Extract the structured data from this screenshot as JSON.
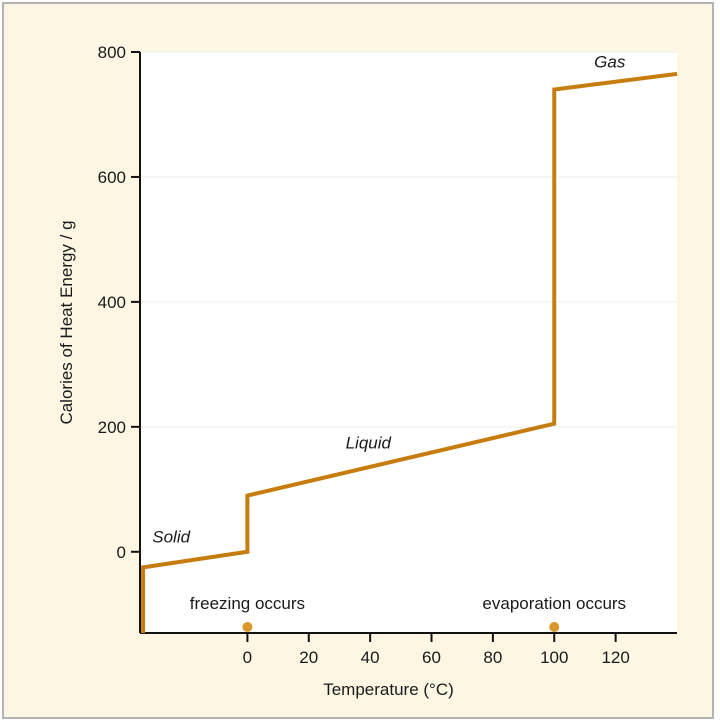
{
  "chart_data": {
    "type": "line",
    "xlabel": "Temperature (°C)",
    "ylabel": "Calories of Heat Energy / g",
    "xlim": [
      -35,
      140
    ],
    "ylim": [
      -130,
      800
    ],
    "x_ticks": [
      0,
      20,
      40,
      60,
      80,
      100,
      120
    ],
    "y_ticks": [
      0,
      200,
      400,
      600,
      800
    ],
    "grid": true,
    "line_color": "#c77d0e",
    "background_color": "#fcf6e3",
    "plot_color": "#ffffff",
    "series": [
      {
        "points": [
          {
            "x": -34,
            "y": -130
          },
          {
            "x": -34,
            "y": -25
          },
          {
            "x": 0,
            "y": 0
          },
          {
            "x": 0,
            "y": 90
          },
          {
            "x": 100,
            "y": 205
          },
          {
            "x": 100,
            "y": 740
          },
          {
            "x": 140,
            "y": 765
          }
        ]
      }
    ],
    "phase_labels": [
      {
        "text": "Solid",
        "x": -31,
        "y": 15
      },
      {
        "text": "Liquid",
        "x": 32,
        "y": 165
      },
      {
        "text": "Gas",
        "x": 113,
        "y": 775
      }
    ],
    "annotations": [
      {
        "text": "freezing occurs",
        "x": 0
      },
      {
        "text": "evaporation occurs",
        "x": 100
      }
    ]
  }
}
